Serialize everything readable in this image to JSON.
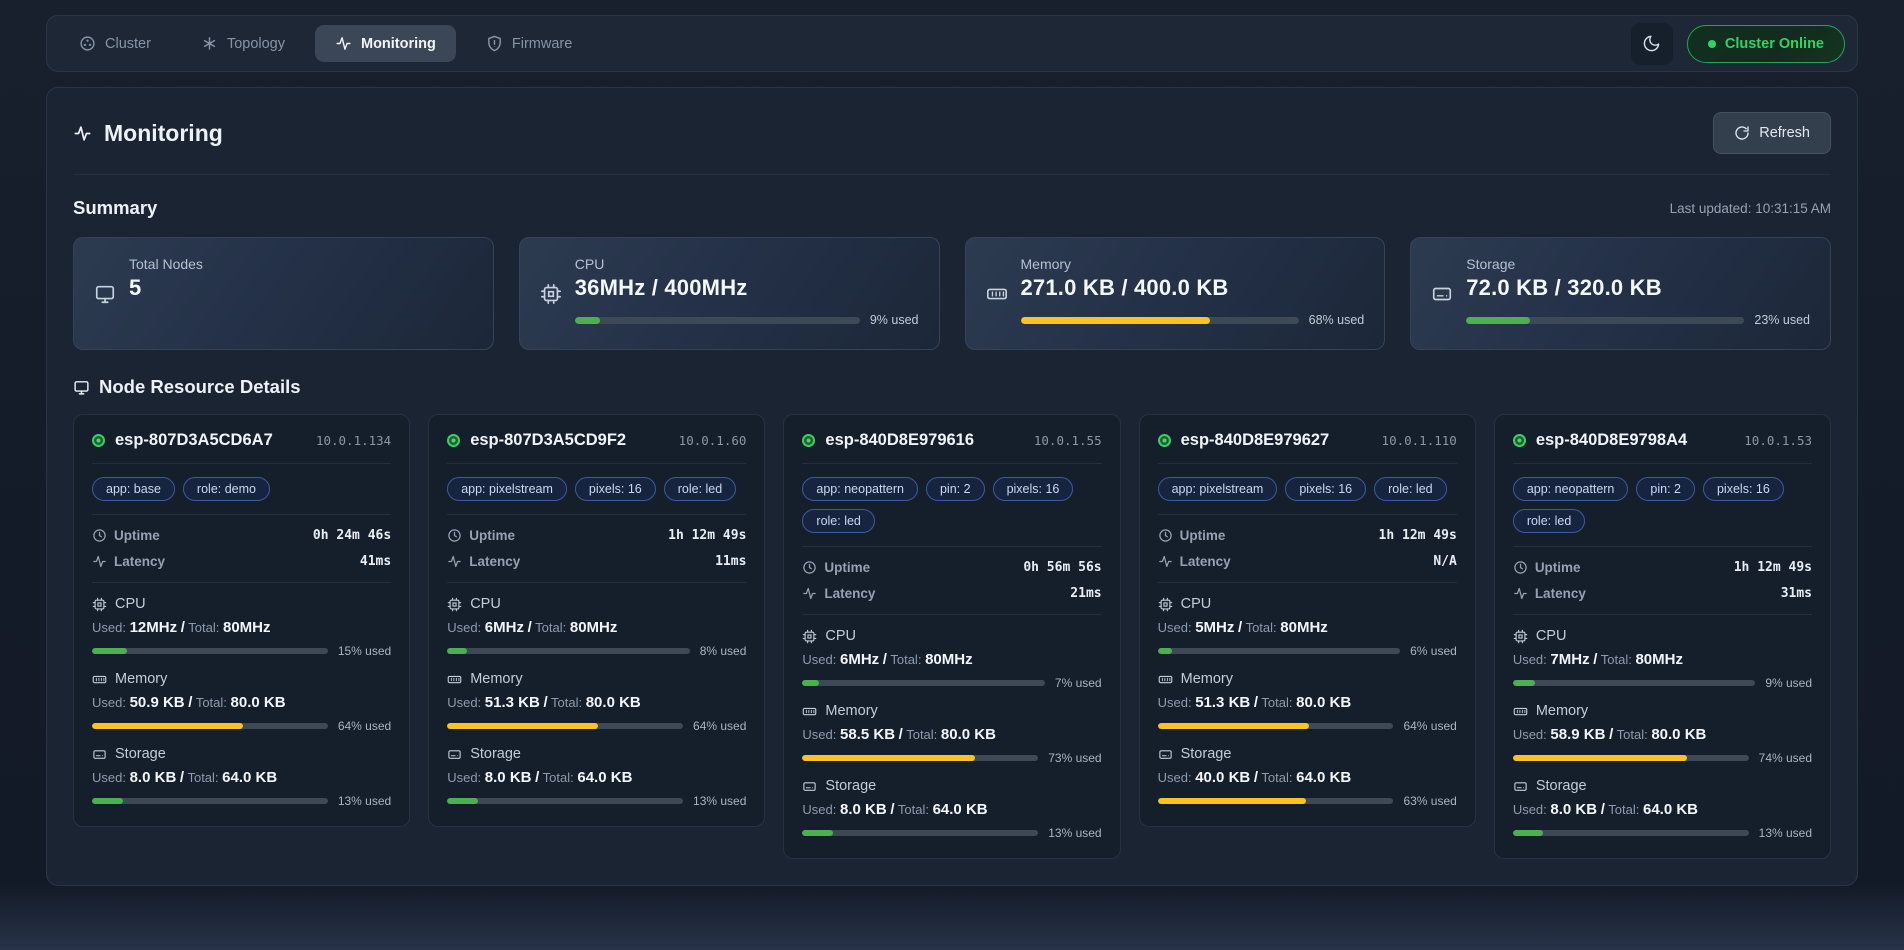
{
  "colors": {
    "green": "#4caf50",
    "amber": "#fbc224"
  },
  "nav": {
    "tabs": [
      {
        "label": "Cluster"
      },
      {
        "label": "Topology"
      },
      {
        "label": "Monitoring"
      },
      {
        "label": "Firmware"
      }
    ],
    "status_badge": "Cluster Online"
  },
  "page": {
    "title": "Monitoring",
    "refresh_label": "Refresh",
    "summary_title": "Summary",
    "last_updated": "Last updated: 10:31:15 AM",
    "nodes_title": "Node Resource Details"
  },
  "summary_cards": {
    "total_nodes": {
      "label": "Total Nodes",
      "value": "5"
    },
    "stats": [
      {
        "label": "CPU",
        "value": "36MHz / 400MHz",
        "percent": 9,
        "percent_label": "9% used",
        "color": "#4caf50"
      },
      {
        "label": "Memory",
        "value": "271.0 KB / 400.0 KB",
        "percent": 68,
        "percent_label": "68% used",
        "color": "#fbc224"
      },
      {
        "label": "Storage",
        "value": "72.0 KB / 320.0 KB",
        "percent": 23,
        "percent_label": "23% used",
        "color": "#4caf50"
      }
    ]
  },
  "node_labels": {
    "uptime": "Uptime",
    "latency": "Latency",
    "cpu": "CPU",
    "memory": "Memory",
    "storage": "Storage",
    "used": "Used:",
    "total": "Total:",
    "separator": "/"
  },
  "nodes": [
    {
      "name": "esp-807D3A5CD6A7",
      "ip": "10.0.1.134",
      "tags": [
        "app: base",
        "role: demo"
      ],
      "uptime": "0h 24m 46s",
      "latency": "41ms",
      "metrics": [
        {
          "used": "12MHz",
          "total": "80MHz",
          "percent": 15,
          "percent_label": "15% used",
          "color": "#4caf50"
        },
        {
          "used": "50.9 KB",
          "total": "80.0 KB",
          "percent": 64,
          "percent_label": "64% used",
          "color": "#fbc224"
        },
        {
          "used": "8.0 KB",
          "total": "64.0 KB",
          "percent": 13,
          "percent_label": "13% used",
          "color": "#4caf50"
        }
      ]
    },
    {
      "name": "esp-807D3A5CD9F2",
      "ip": "10.0.1.60",
      "tags": [
        "app: pixelstream",
        "pixels: 16",
        "role: led"
      ],
      "uptime": "1h 12m 49s",
      "latency": "11ms",
      "metrics": [
        {
          "used": "6MHz",
          "total": "80MHz",
          "percent": 8,
          "percent_label": "8% used",
          "color": "#4caf50"
        },
        {
          "used": "51.3 KB",
          "total": "80.0 KB",
          "percent": 64,
          "percent_label": "64% used",
          "color": "#fbc224"
        },
        {
          "used": "8.0 KB",
          "total": "64.0 KB",
          "percent": 13,
          "percent_label": "13% used",
          "color": "#4caf50"
        }
      ]
    },
    {
      "name": "esp-840D8E979616",
      "ip": "10.0.1.55",
      "tags": [
        "app: neopattern",
        "pin: 2",
        "pixels: 16",
        "role: led"
      ],
      "uptime": "0h 56m 56s",
      "latency": "21ms",
      "metrics": [
        {
          "used": "6MHz",
          "total": "80MHz",
          "percent": 7,
          "percent_label": "7% used",
          "color": "#4caf50"
        },
        {
          "used": "58.5 KB",
          "total": "80.0 KB",
          "percent": 73,
          "percent_label": "73% used",
          "color": "#fbc224"
        },
        {
          "used": "8.0 KB",
          "total": "64.0 KB",
          "percent": 13,
          "percent_label": "13% used",
          "color": "#4caf50"
        }
      ]
    },
    {
      "name": "esp-840D8E979627",
      "ip": "10.0.1.110",
      "tags": [
        "app: pixelstream",
        "pixels: 16",
        "role: led"
      ],
      "uptime": "1h 12m 49s",
      "latency": "N/A",
      "metrics": [
        {
          "used": "5MHz",
          "total": "80MHz",
          "percent": 6,
          "percent_label": "6% used",
          "color": "#4caf50"
        },
        {
          "used": "51.3 KB",
          "total": "80.0 KB",
          "percent": 64,
          "percent_label": "64% used",
          "color": "#fbc224"
        },
        {
          "used": "40.0 KB",
          "total": "64.0 KB",
          "percent": 63,
          "percent_label": "63% used",
          "color": "#fbc224"
        }
      ]
    },
    {
      "name": "esp-840D8E9798A4",
      "ip": "10.0.1.53",
      "tags": [
        "app: neopattern",
        "pin: 2",
        "pixels: 16",
        "role: led"
      ],
      "uptime": "1h 12m 49s",
      "latency": "31ms",
      "metrics": [
        {
          "used": "7MHz",
          "total": "80MHz",
          "percent": 9,
          "percent_label": "9% used",
          "color": "#4caf50"
        },
        {
          "used": "58.9 KB",
          "total": "80.0 KB",
          "percent": 74,
          "percent_label": "74% used",
          "color": "#fbc224"
        },
        {
          "used": "8.0 KB",
          "total": "64.0 KB",
          "percent": 13,
          "percent_label": "13% used",
          "color": "#4caf50"
        }
      ]
    }
  ]
}
